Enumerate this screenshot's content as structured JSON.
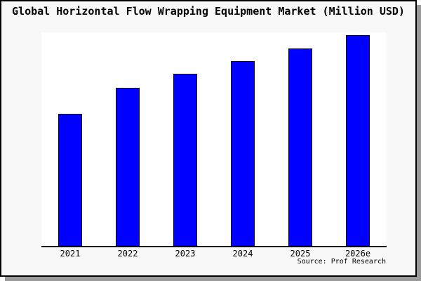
{
  "chart_data": {
    "type": "bar",
    "title": "Global Horizontal Flow Wrapping Equipment Market (Million USD)",
    "categories": [
      "2021",
      "2022",
      "2023",
      "2024",
      "2025",
      "2026e"
    ],
    "values": [
      188,
      225,
      245,
      263,
      281,
      300
    ],
    "values_note": "y-axis has no visible scale or tick labels; values are relative bar heights measured from the image (pixels above baseline)",
    "xlabel": "",
    "ylabel": "",
    "ylim": [
      0,
      304
    ],
    "grid": false,
    "legend": null,
    "source": "Source: Prof Research",
    "colors": {
      "bar_fill": "#0000ff",
      "bar_border": "#000000",
      "panel_background": "#f8f8f8",
      "plot_background": "#ffffff",
      "axis_line": "#000000",
      "panel_border": "#000000",
      "drop_shadow": "#999999",
      "text": "#000000"
    }
  }
}
